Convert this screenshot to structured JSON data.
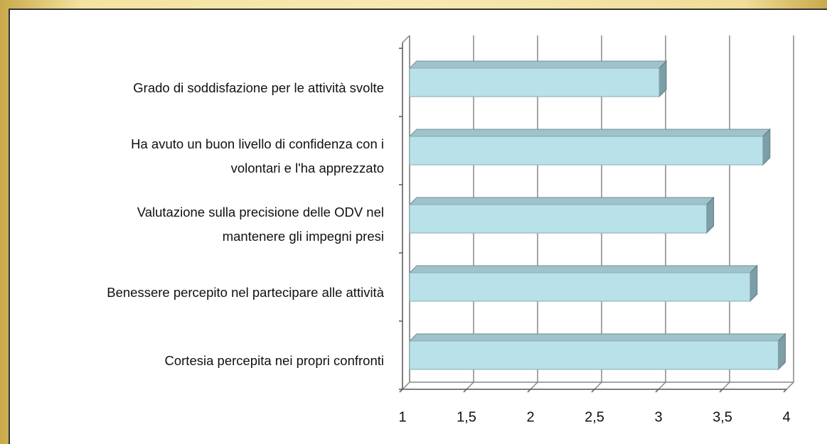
{
  "chart_data": {
    "type": "bar3d_horizontal",
    "categories": [
      "Grado di soddisfazione per le attività svolte",
      "Ha avuto un buon livello di confidenza con i volontari e l'ha apprezzato",
      "Valutazione sulla precisione delle ODV nel mantenere gli impegni presi",
      "Benessere percepito nel partecipare alle attività",
      "Cortesia percepita nei propri confronti"
    ],
    "values": [
      2.95,
      3.76,
      3.32,
      3.66,
      3.88
    ],
    "color": "#b9e1ea",
    "xlim": [
      1,
      4
    ],
    "xticks": [
      1,
      {
        "value": 1.5,
        "label": "1,5"
      },
      2,
      {
        "value": 2.5,
        "label": "2,5"
      },
      3,
      {
        "value": 3.5,
        "label": "3,5"
      },
      4
    ],
    "grid": true
  }
}
